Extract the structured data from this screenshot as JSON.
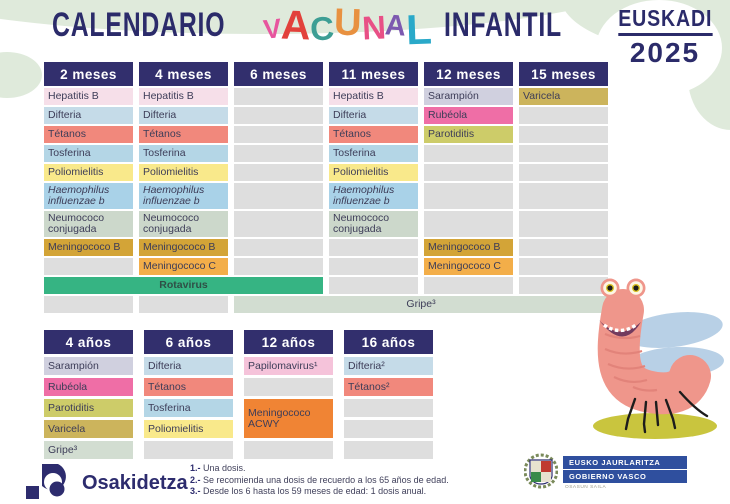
{
  "header": {
    "title_leading": "CALENDARIO",
    "vacunal": [
      {
        "ch": "V",
        "color": "#e7559e"
      },
      {
        "ch": "A",
        "color": "#e2413b"
      },
      {
        "ch": "C",
        "color": "#3d9e94"
      },
      {
        "ch": "U",
        "color": "#e89140"
      },
      {
        "ch": "N",
        "color": "#e85086"
      },
      {
        "ch": "A",
        "color": "#7d59b0"
      },
      {
        "ch": "L",
        "color": "#2aa9c9"
      }
    ],
    "title_trailing": "INFANTIL",
    "region": "EUSKADI",
    "year": "2025"
  },
  "colors": {
    "header_navy": "#322f6d",
    "empty": "#dedede",
    "hepatitis_b": "#f6dfe9",
    "difteria": "#c5dbe8",
    "tetanos": "#f1887c",
    "tosferina": "#b4d6e6",
    "poliomielitis": "#f9e98b",
    "haemophilus": "#a9d2e8",
    "neumococo": "#ccd8cb",
    "meningococo_b": "#d3a437",
    "meningococo_c": "#f3ae49",
    "rotavirus": "#36b483",
    "gripe": "#d2ddd1",
    "sarampion": "#d0d0df",
    "rubeola": "#ef6ea6",
    "parotiditis": "#cdcc69",
    "varicela": "#ccb45c",
    "papilomavirus": "#f5c3da",
    "meningococo_acwy": "#f08434"
  },
  "top_table": {
    "headers": [
      "2 meses",
      "4 meses",
      "6 meses",
      "11 meses",
      "12 meses",
      "15 meses"
    ],
    "cells": [
      {
        "r": 1,
        "c": 1,
        "t": "Hepatitis B",
        "k": "hepatitis_b"
      },
      {
        "r": 1,
        "c": 2,
        "t": "Hepatitis B",
        "k": "hepatitis_b"
      },
      {
        "r": 1,
        "c": 4,
        "t": "Hepatitis B",
        "k": "hepatitis_b"
      },
      {
        "r": 1,
        "c": 5,
        "t": "Sarampión",
        "k": "sarampion"
      },
      {
        "r": 1,
        "c": 6,
        "t": "Varicela",
        "k": "varicela"
      },
      {
        "r": 2,
        "c": 1,
        "t": "Difteria",
        "k": "difteria"
      },
      {
        "r": 2,
        "c": 2,
        "t": "Difteria",
        "k": "difteria"
      },
      {
        "r": 2,
        "c": 4,
        "t": "Difteria",
        "k": "difteria"
      },
      {
        "r": 2,
        "c": 5,
        "t": "Rubéola",
        "k": "rubeola"
      },
      {
        "r": 3,
        "c": 1,
        "t": "Tétanos",
        "k": "tetanos"
      },
      {
        "r": 3,
        "c": 2,
        "t": "Tétanos",
        "k": "tetanos"
      },
      {
        "r": 3,
        "c": 4,
        "t": "Tétanos",
        "k": "tetanos"
      },
      {
        "r": 3,
        "c": 5,
        "t": "Parotiditis",
        "k": "parotiditis"
      },
      {
        "r": 4,
        "c": 1,
        "t": "Tosferina",
        "k": "tosferina"
      },
      {
        "r": 4,
        "c": 2,
        "t": "Tosferina",
        "k": "tosferina"
      },
      {
        "r": 4,
        "c": 4,
        "t": "Tosferina",
        "k": "tosferina"
      },
      {
        "r": 5,
        "c": 1,
        "t": "Poliomielitis",
        "k": "poliomielitis"
      },
      {
        "r": 5,
        "c": 2,
        "t": "Poliomielitis",
        "k": "poliomielitis"
      },
      {
        "r": 5,
        "c": 4,
        "t": "Poliomielitis",
        "k": "poliomielitis"
      },
      {
        "r": 6,
        "c": 1,
        "t": "Haemophilus influenzae b",
        "k": "haemophilus",
        "it": true
      },
      {
        "r": 6,
        "c": 2,
        "t": "Haemophilus influenzae b",
        "k": "haemophilus",
        "it": true
      },
      {
        "r": 6,
        "c": 4,
        "t": "Haemophilus influenzae b",
        "k": "haemophilus",
        "it": true
      },
      {
        "r": 7,
        "c": 1,
        "t": "Neumococo conjugada",
        "k": "neumococo"
      },
      {
        "r": 7,
        "c": 2,
        "t": "Neumococo conjugada",
        "k": "neumococo"
      },
      {
        "r": 7,
        "c": 4,
        "t": "Neumococo conjugada",
        "k": "neumococo"
      },
      {
        "r": 8,
        "c": 1,
        "t": "Meningococo B",
        "k": "meningococo_b"
      },
      {
        "r": 8,
        "c": 2,
        "t": "Meningococo B",
        "k": "meningococo_b"
      },
      {
        "r": 8,
        "c": 5,
        "t": "Meningococo B",
        "k": "meningococo_b"
      },
      {
        "r": 9,
        "c": 2,
        "t": "Meningococo C",
        "k": "meningococo_c"
      },
      {
        "r": 9,
        "c": 5,
        "t": "Meningococo C",
        "k": "meningococo_c"
      },
      {
        "r": 10,
        "c": 1,
        "cs": 3,
        "t": "Rotavirus",
        "k": "rotavirus",
        "ctr": true
      },
      {
        "r": 11,
        "c": 3,
        "cs": 4,
        "t": "Gripe³",
        "k": "gripe",
        "gctr": true
      }
    ]
  },
  "bottom_table": {
    "headers": [
      "4 años",
      "6 años",
      "12 años",
      "16 años"
    ],
    "cells": [
      {
        "r": 1,
        "c": 1,
        "t": "Sarampión",
        "k": "sarampion"
      },
      {
        "r": 2,
        "c": 1,
        "t": "Rubéola",
        "k": "rubeola"
      },
      {
        "r": 3,
        "c": 1,
        "t": "Parotiditis",
        "k": "parotiditis"
      },
      {
        "r": 4,
        "c": 1,
        "t": "Varicela",
        "k": "varicela"
      },
      {
        "r": 5,
        "c": 1,
        "t": "Gripe³",
        "k": "gripe"
      },
      {
        "r": 1,
        "c": 2,
        "t": "Difteria",
        "k": "difteria"
      },
      {
        "r": 2,
        "c": 2,
        "t": "Tétanos",
        "k": "tetanos"
      },
      {
        "r": 3,
        "c": 2,
        "t": "Tosferina",
        "k": "tosferina"
      },
      {
        "r": 4,
        "c": 2,
        "t": "Poliomielitis",
        "k": "poliomielitis"
      },
      {
        "r": 1,
        "c": 3,
        "t": "Papilomavirus¹",
        "k": "papilomavirus"
      },
      {
        "r": 3,
        "c": 3,
        "rs": 2,
        "t": "Meningococo ACWY",
        "k": "meningococo_acwy"
      },
      {
        "r": 1,
        "c": 4,
        "t": "Difteria²",
        "k": "difteria"
      },
      {
        "r": 2,
        "c": 4,
        "t": "Tétanos²",
        "k": "tetanos"
      }
    ]
  },
  "footer": {
    "org_name": "Osakidetza",
    "notes": [
      {
        "num": "1.-",
        "text": "Una dosis."
      },
      {
        "num": "2.-",
        "text": "Se recomienda una dosis de recuerdo a los 65 años de edad."
      },
      {
        "num": "3.-",
        "text": "Desde los 6 hasta los 59 meses de edad: 1 dosis anual."
      }
    ],
    "gov_logo": {
      "line1": "EUSKO JAURLARITZA",
      "line2": "GOBIERNO VASCO",
      "sub": "OSASUN SAILA"
    }
  }
}
